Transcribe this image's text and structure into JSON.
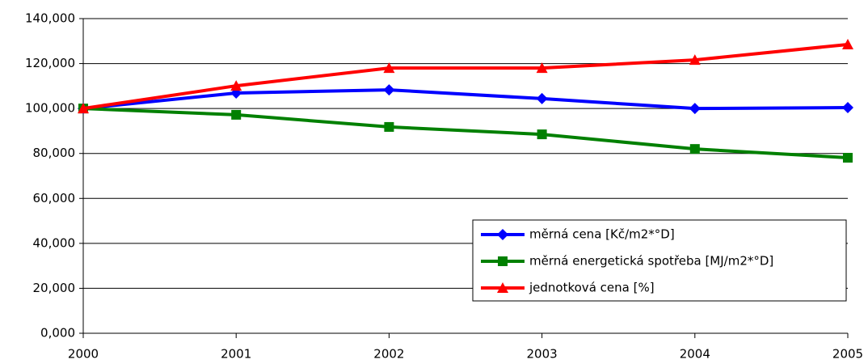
{
  "chart_data": {
    "type": "line",
    "categories": [
      "2000",
      "2001",
      "2002",
      "2003",
      "2004",
      "2005"
    ],
    "series": [
      {
        "name": "měrná cena [Kč/m2*°D]",
        "color": "#0000ff",
        "marker": "diamond",
        "values": [
          100,
          106.9,
          108.3,
          104.4,
          100.0,
          100.4
        ]
      },
      {
        "name": "měrná energetická spotřeba [MJ/m2*°D]",
        "color": "#008000",
        "marker": "square",
        "values": [
          100,
          97.2,
          91.8,
          88.5,
          82.0,
          78.1
        ]
      },
      {
        "name": "jednotková cena [%]",
        "color": "#ff0000",
        "marker": "triangle",
        "values": [
          100,
          110.1,
          118.0,
          118.0,
          121.6,
          128.5
        ]
      }
    ],
    "ylim": [
      0,
      140
    ],
    "yticks": [
      {
        "value": 0,
        "label": "0,000"
      },
      {
        "value": 20,
        "label": "20,000"
      },
      {
        "value": 40,
        "label": "40,000"
      },
      {
        "value": 60,
        "label": "60,000"
      },
      {
        "value": 80,
        "label": "80,000"
      },
      {
        "value": 100,
        "label": "100,000"
      },
      {
        "value": 120,
        "label": "120,000"
      },
      {
        "value": 140,
        "label": "140,000"
      }
    ],
    "grid": true,
    "legend": "lower right"
  }
}
